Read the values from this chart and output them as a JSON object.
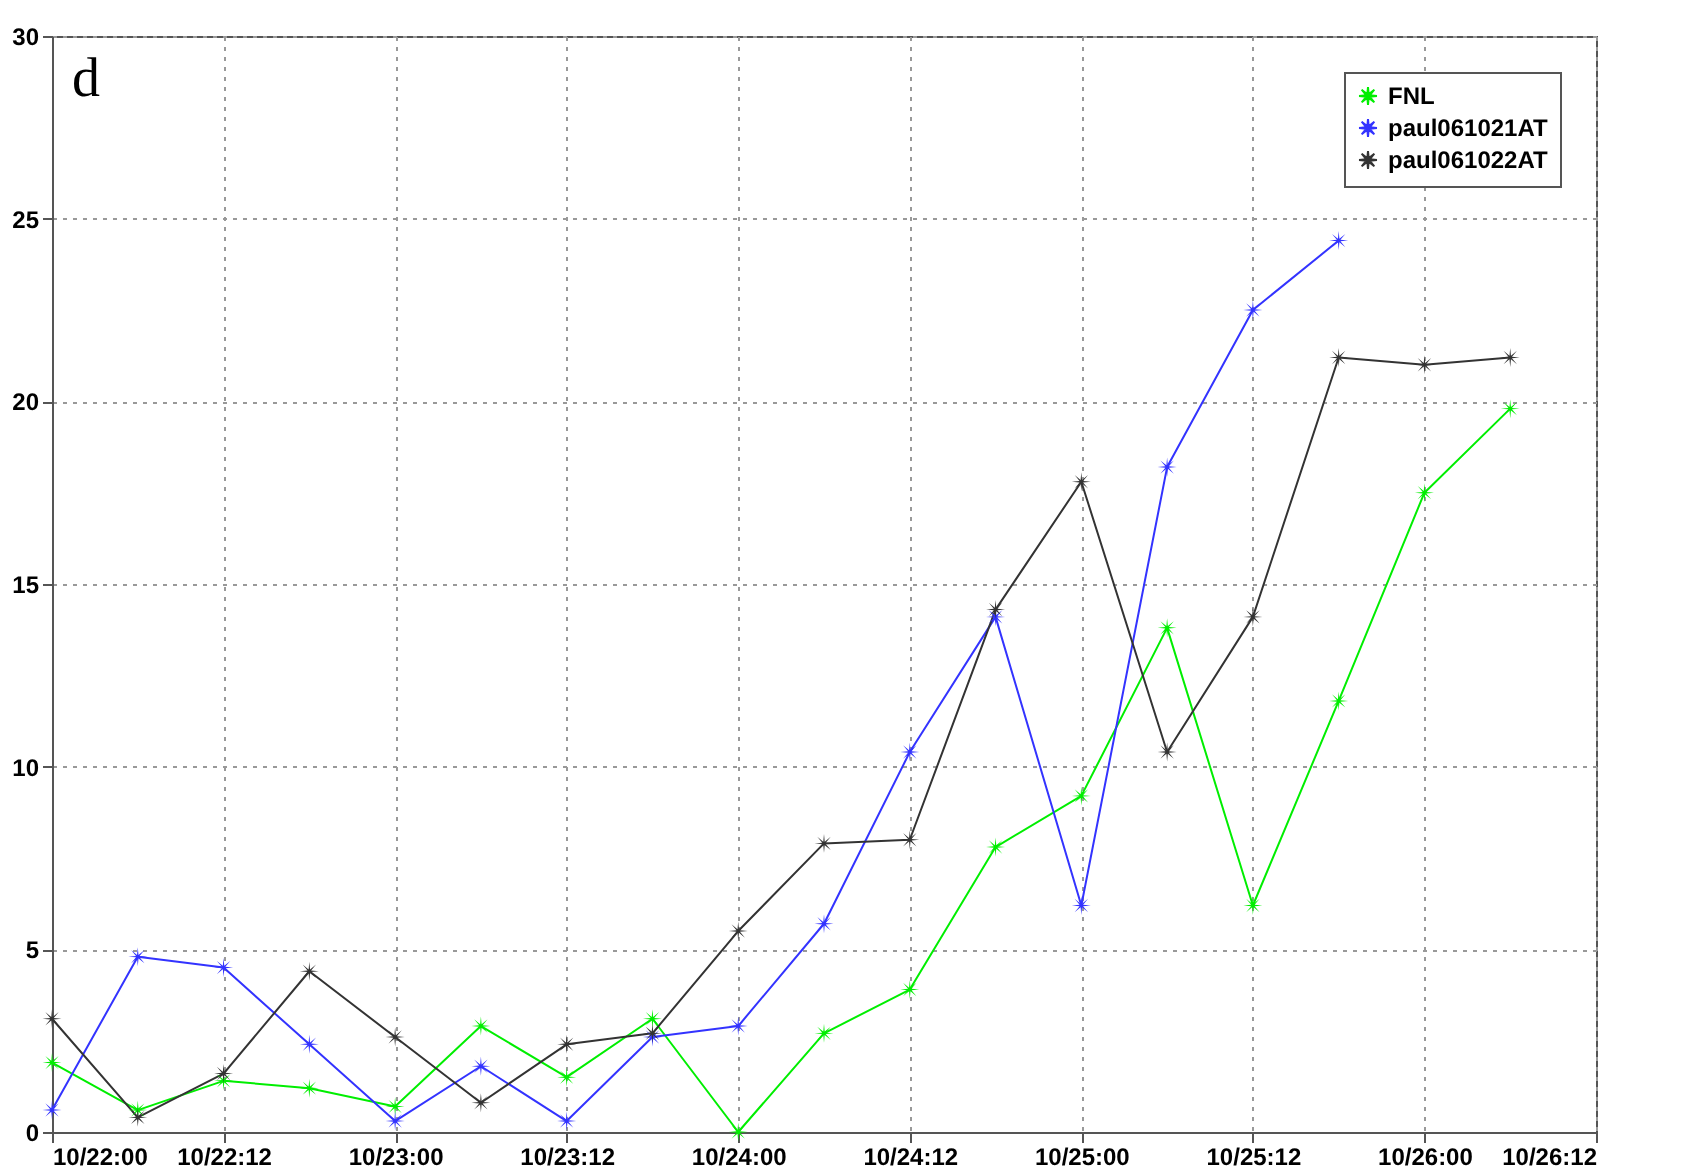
{
  "chart_data": {
    "type": "line",
    "x": [
      "--10-22T00:00",
      "--10-22T06:00",
      "--10-22T12:00",
      "--10-22T18:00",
      "--10-23T00:00",
      "--10-23T06:00",
      "--10-23T12:00",
      "--10-23T18:00",
      "--10-24T00:00",
      "--10-24T06:00",
      "--10-24T12:00",
      "--10-24T18:00",
      "--10-25T00:00",
      "--10-25T06:00",
      "--10-25T12:00",
      "--10-25T18:00",
      "--10-26T00:00",
      "--10-26T06:00"
    ],
    "series": [
      {
        "name": "FNL",
        "color": "#00ee00",
        "values": [
          1.9,
          0.6,
          1.4,
          1.2,
          0.7,
          2.9,
          1.5,
          3.1,
          0,
          2.7,
          3.9,
          7.8,
          9.2,
          13.8,
          6.2,
          11.8,
          17.5,
          19.8
        ]
      },
      {
        "name": "paul061021AT",
        "color": "#3333ff",
        "values": [
          0.6,
          4.8,
          4.5,
          2.4,
          0.3,
          1.8,
          0.3,
          2.6,
          2.9,
          5.7,
          10.4,
          14.1,
          6.2,
          18.2,
          22.5,
          24.4,
          null,
          null
        ]
      },
      {
        "name": "paul061022AT",
        "color": "#333333",
        "values": [
          3.1,
          0.4,
          1.6,
          4.4,
          2.6,
          0.8,
          2.4,
          2.7,
          5.5,
          7.9,
          8.0,
          14.3,
          17.8,
          10.4,
          14.1,
          21.2,
          21.0,
          21.2
        ]
      }
    ],
    "xlim": [
      "--10-22T00:00",
      "--10-26T12:00"
    ],
    "xticks": [
      {
        "value": "--10-22T00:00",
        "label": "10/22:00"
      },
      {
        "value": "--10-22T12:00",
        "label": "10/22:12"
      },
      {
        "value": "--10-23T00:00",
        "label": "10/23:00"
      },
      {
        "value": "--10-23T12:00",
        "label": "10/23:12"
      },
      {
        "value": "--10-24T00:00",
        "label": "10/24:00"
      },
      {
        "value": "--10-24T12:00",
        "label": "10/24:12"
      },
      {
        "value": "--10-25T00:00",
        "label": "10/25:00"
      },
      {
        "value": "--10-25T12:00",
        "label": "10/25:12"
      },
      {
        "value": "--10-26T00:00",
        "label": "10/26:00"
      },
      {
        "value": "--10-26T12:00",
        "label": "10/26:12"
      }
    ],
    "ylim": [
      0,
      30
    ],
    "yticks": [
      0,
      5,
      10,
      15,
      20,
      25,
      30
    ],
    "grid": true,
    "legend": "top right",
    "marker": "star",
    "line_style": "solid",
    "annotations": [
      "d"
    ]
  }
}
